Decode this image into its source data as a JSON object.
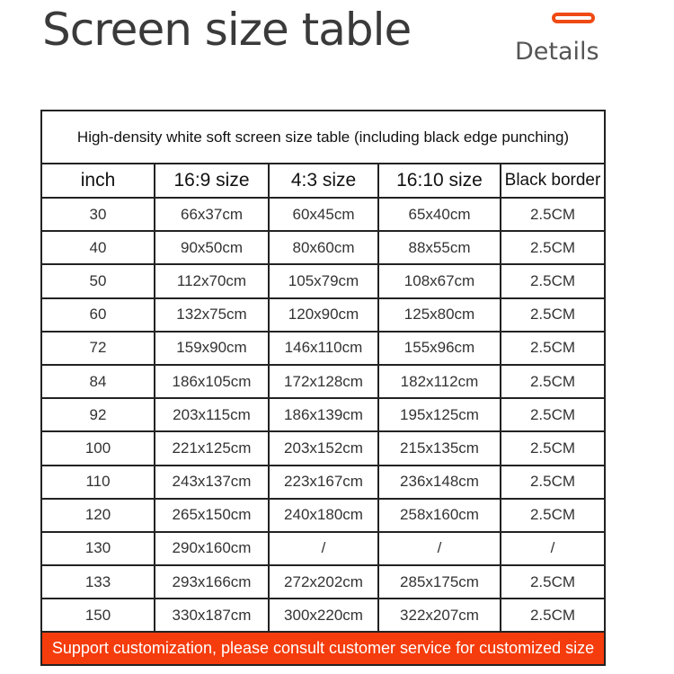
{
  "header": {
    "title": "Screen size table",
    "details_label": "Details",
    "accent": "#f04a14"
  },
  "table": {
    "caption": "High-density white soft screen size table (including black edge punching)",
    "columns": [
      "inch",
      "16:9 size",
      "4:3 size",
      "16:10 size",
      "Black border"
    ],
    "rows": [
      [
        "30",
        "66x37cm",
        "60x45cm",
        "65x40cm",
        "2.5CM"
      ],
      [
        "40",
        "90x50cm",
        "80x60cm",
        "88x55cm",
        "2.5CM"
      ],
      [
        "50",
        "112x70cm",
        "105x79cm",
        "108x67cm",
        "2.5CM"
      ],
      [
        "60",
        "132x75cm",
        "120x90cm",
        "125x80cm",
        "2.5CM"
      ],
      [
        "72",
        "159x90cm",
        "146x110cm",
        "155x96cm",
        "2.5CM"
      ],
      [
        "84",
        "186x105cm",
        "172x128cm",
        "182x112cm",
        "2.5CM"
      ],
      [
        "92",
        "203x115cm",
        "186x139cm",
        "195x125cm",
        "2.5CM"
      ],
      [
        "100",
        "221x125cm",
        "203x152cm",
        "215x135cm",
        "2.5CM"
      ],
      [
        "110",
        "243x137cm",
        "223x167cm",
        "236x148cm",
        "2.5CM"
      ],
      [
        "120",
        "265x150cm",
        "240x180cm",
        "258x160cm",
        "2.5CM"
      ],
      [
        "130",
        "290x160cm",
        "/",
        "/",
        "/"
      ],
      [
        "133",
        "293x166cm",
        "272x202cm",
        "285x175cm",
        "2.5CM"
      ],
      [
        "150",
        "330x187cm",
        "300x220cm",
        "322x207cm",
        "2.5CM"
      ]
    ],
    "footer": "Support customization, please consult customer service for customized size",
    "footer_color": "#f53c0c"
  }
}
